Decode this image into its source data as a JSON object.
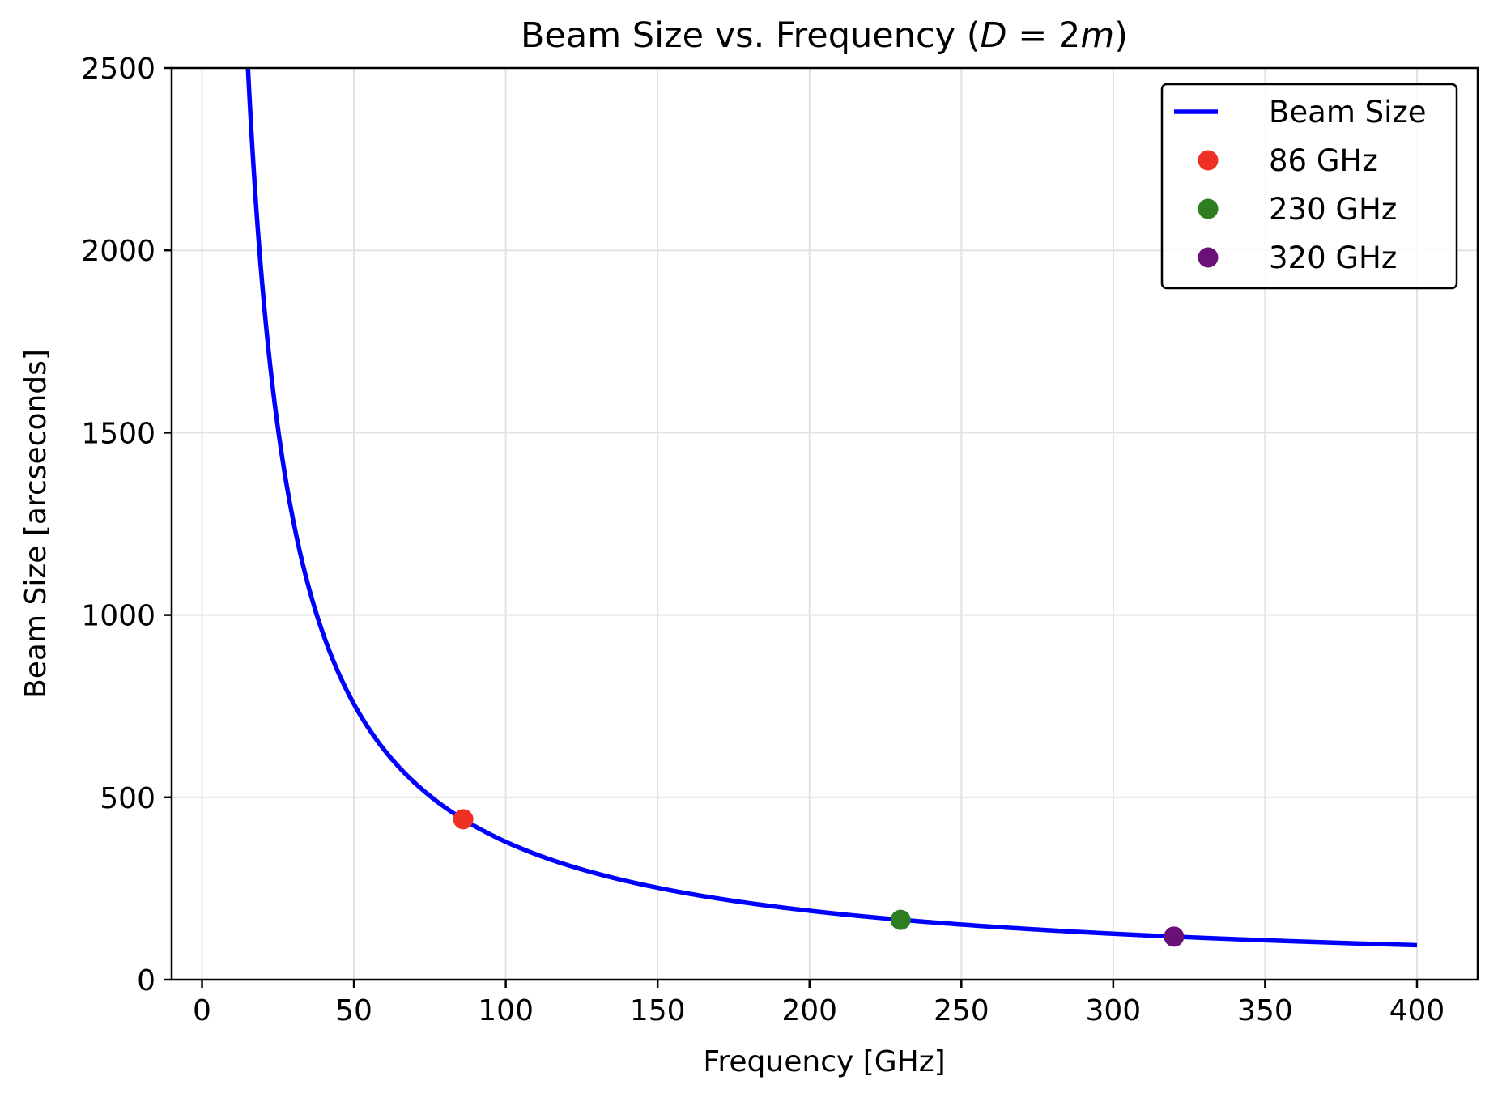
{
  "chart_data": {
    "type": "line",
    "title": {
      "prefix": "Beam Size vs. Frequency (",
      "var": "D",
      "op": " = 2",
      "unit": "m",
      "suffix": ")"
    },
    "xlabel": "Frequency [GHz]",
    "ylabel": "Beam Size [arcseconds]",
    "xlim": [
      -10,
      420
    ],
    "ylim": [
      0,
      2500
    ],
    "xticks": [
      0,
      50,
      100,
      150,
      200,
      250,
      300,
      350,
      400
    ],
    "yticks": [
      0,
      500,
      1000,
      1500,
      2000,
      2500
    ],
    "grid": true,
    "legend_position": "upper-right",
    "series": [
      {
        "name": "Beam Size",
        "kind": "line",
        "color": "#0000ff",
        "formula": "y = 37800 / x",
        "x_range": [
          1,
          400
        ]
      }
    ],
    "points": [
      {
        "name": "86 GHz",
        "x": 86,
        "y": 440,
        "color": "#ee3124"
      },
      {
        "name": "230 GHz",
        "x": 230,
        "y": 164,
        "color": "#2e7d1e"
      },
      {
        "name": "320 GHz",
        "x": 320,
        "y": 118,
        "color": "#6a1178"
      }
    ]
  }
}
